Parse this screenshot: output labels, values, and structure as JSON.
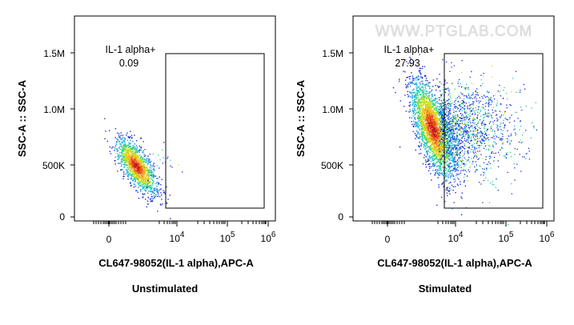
{
  "watermark": "WWW.PTGLAB.COM",
  "chart_data": [
    {
      "type": "scatter",
      "title": "Unstimulated",
      "xlabel": "CL647-98052(IL-1 alpha),APC-A",
      "ylabel": "SSC-A :: SSC-A",
      "x_scale": "biexponential",
      "y_ticks": [
        "0",
        "500K",
        "1.0M",
        "1.5M"
      ],
      "x_ticks": [
        {
          "base": "0",
          "exp": ""
        },
        {
          "base": "10",
          "exp": "4"
        },
        {
          "base": "10",
          "exp": "5"
        },
        {
          "base": "10",
          "exp": "6"
        }
      ],
      "ylim": [
        0,
        1800000
      ],
      "gate": {
        "name": "IL-1 alpha+",
        "percent": "0.09",
        "x_range": [
          "~8x10^3",
          "~8x10^5"
        ],
        "y_range": [
          80000,
          1500000
        ]
      },
      "population": {
        "x_center": "~3x10^3",
        "y_center": 450000,
        "y_range": [
          200000,
          750000
        ]
      }
    },
    {
      "type": "scatter",
      "title": "Stimulated",
      "xlabel": "CL647-98052(IL-1 alpha),APC-A",
      "ylabel": "SSC-A :: SSC-A",
      "x_scale": "biexponential",
      "y_ticks": [
        "0",
        "500K",
        "1.0M",
        "1.5M"
      ],
      "x_ticks": [
        {
          "base": "0",
          "exp": ""
        },
        {
          "base": "10",
          "exp": "4"
        },
        {
          "base": "10",
          "exp": "5"
        },
        {
          "base": "10",
          "exp": "6"
        }
      ],
      "ylim": [
        0,
        1800000
      ],
      "gate": {
        "name": "IL-1 alpha+",
        "percent": "27.93",
        "x_range": [
          "~8x10^3",
          "~8x10^5"
        ],
        "y_range": [
          80000,
          1500000
        ]
      },
      "population": {
        "x_center": "~3x10^3",
        "y_center": 700000,
        "y_range": [
          350000,
          1250000
        ]
      }
    }
  ]
}
